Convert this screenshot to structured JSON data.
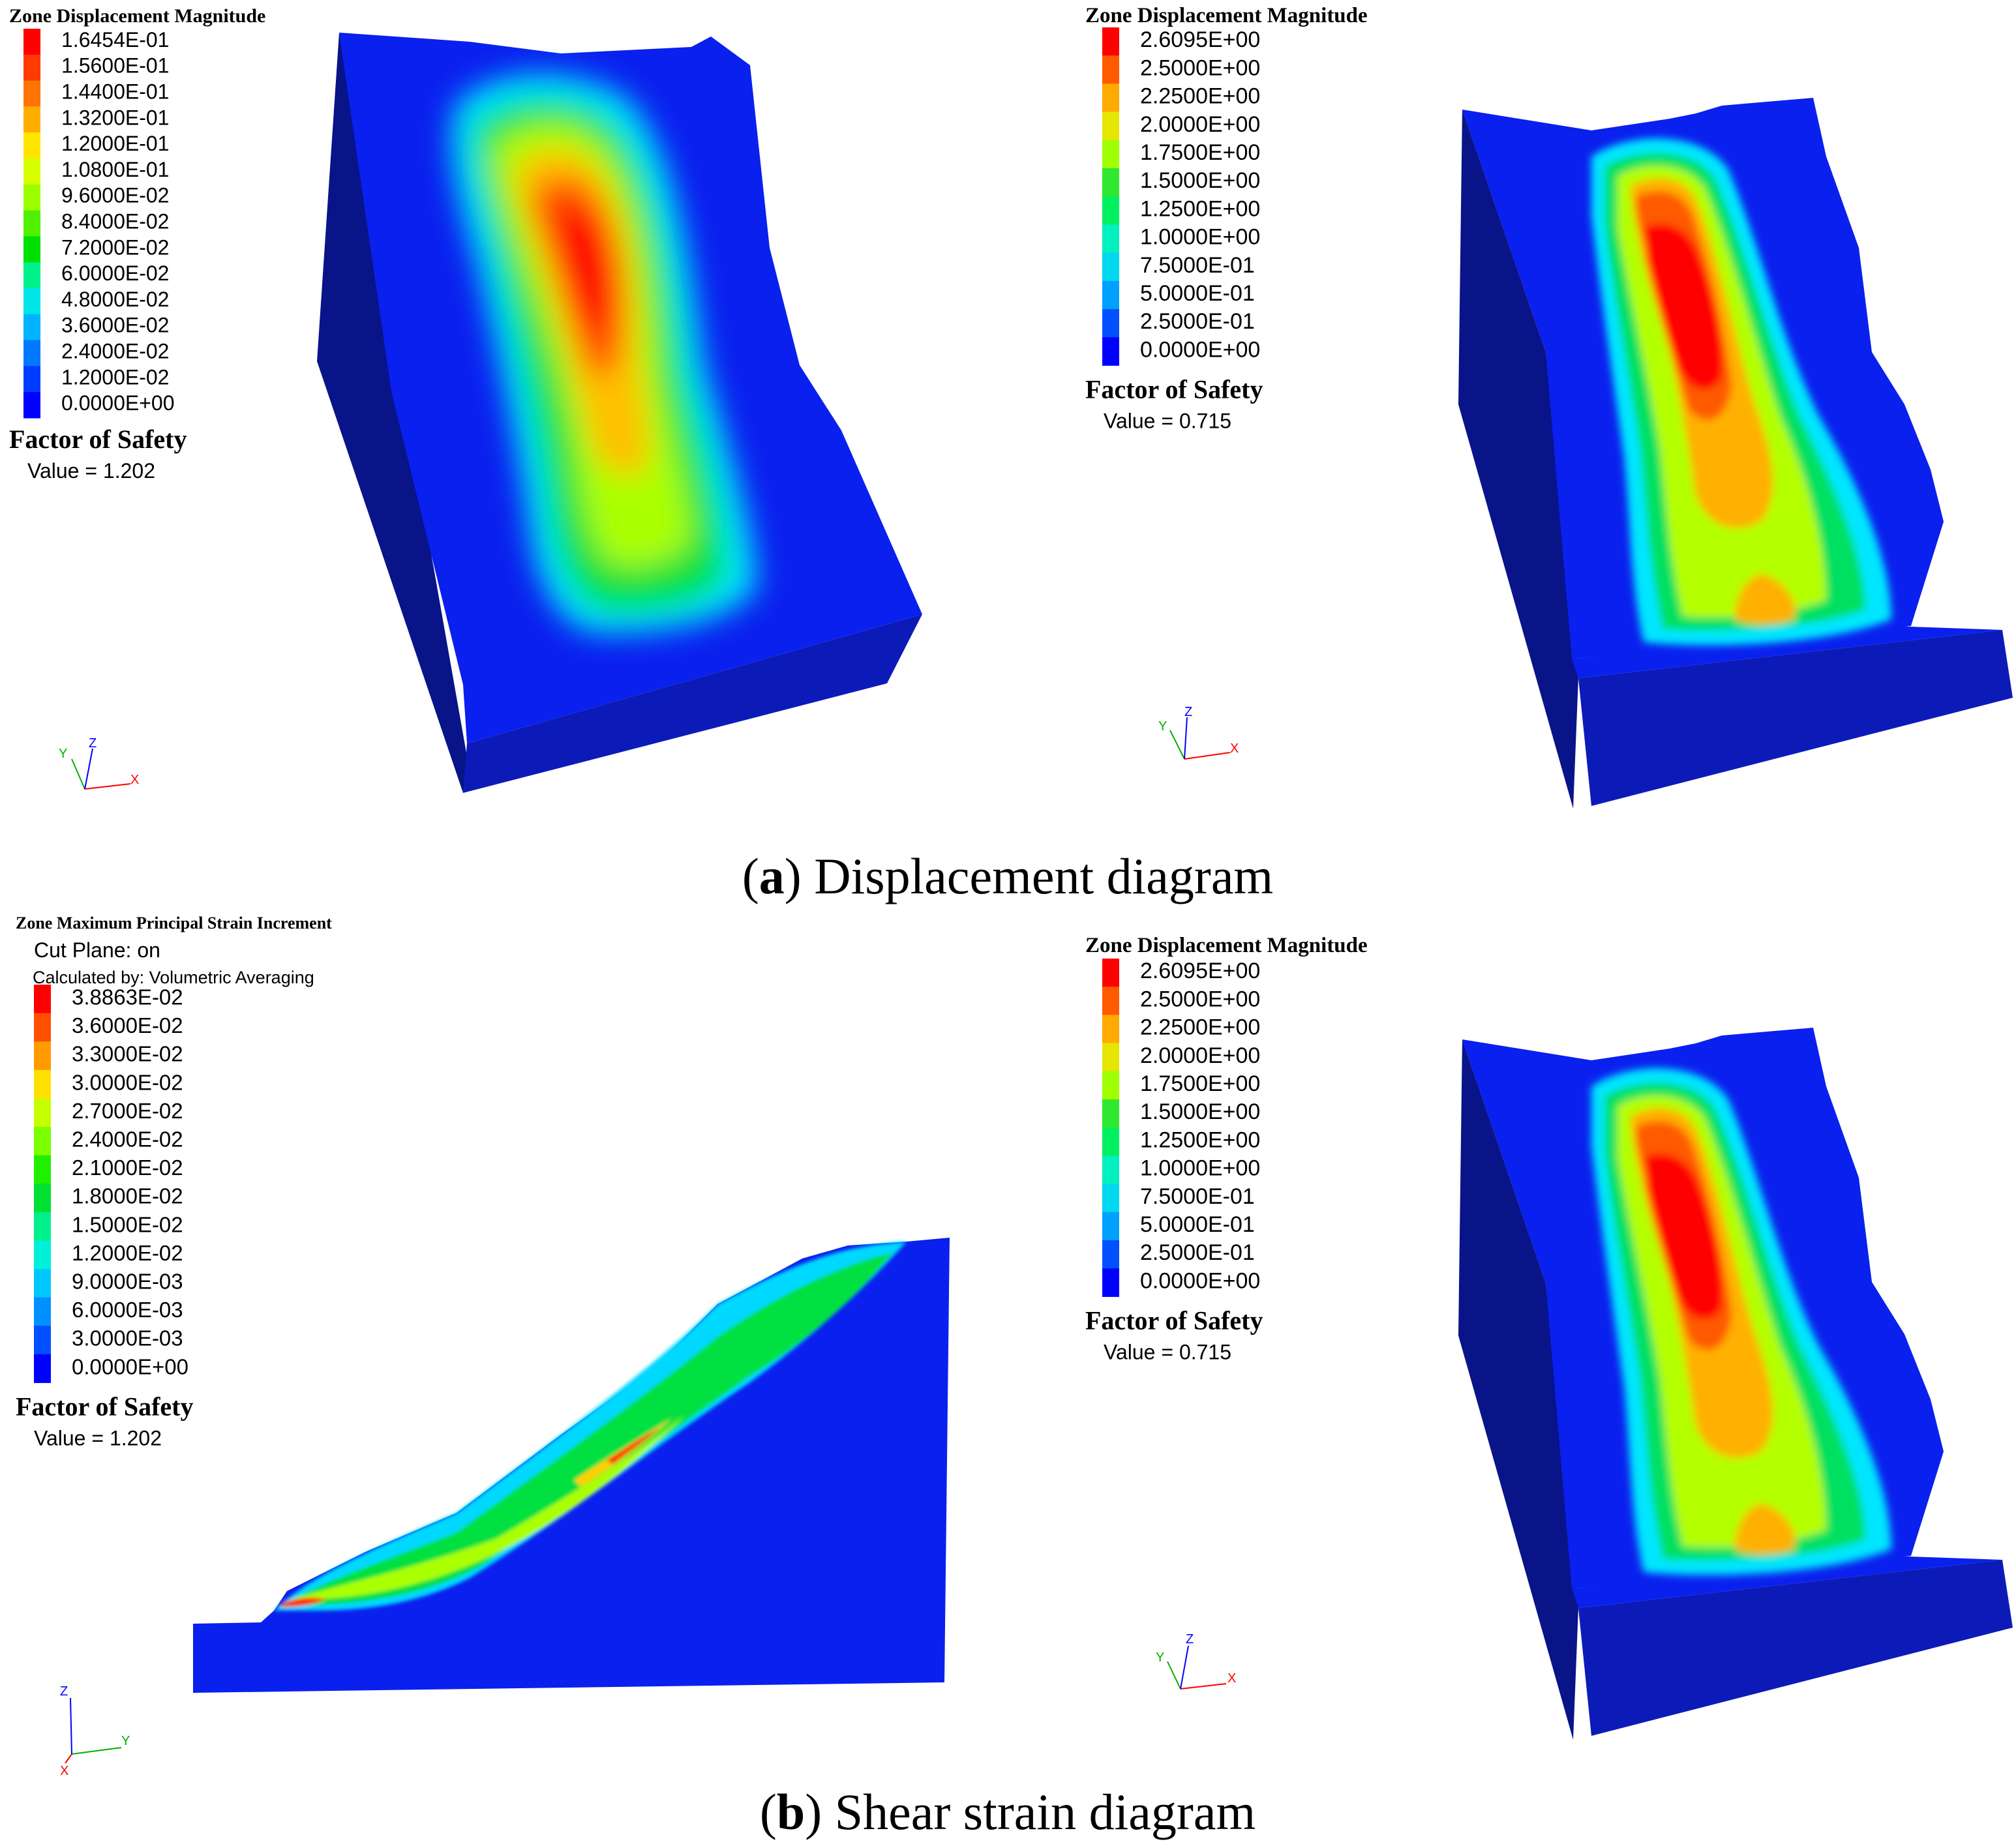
{
  "panels": [
    {
      "id": "a_left",
      "legend_title": "Zone Displacement Magnitude",
      "legend_sub": [],
      "legend_values": [
        "1.6454E-01",
        "1.5600E-01",
        "1.4400E-01",
        "1.3200E-01",
        "1.2000E-01",
        "1.0800E-01",
        "9.6000E-02",
        "8.4000E-02",
        "7.2000E-02",
        "6.0000E-02",
        "4.8000E-02",
        "3.6000E-02",
        "2.4000E-02",
        "1.2000E-02",
        "0.0000E+00"
      ],
      "legend_colors": [
        "#ff0000",
        "#ff3a00",
        "#ff7400",
        "#ffae00",
        "#ffe600",
        "#d8ff00",
        "#9cff00",
        "#50f000",
        "#00e000",
        "#00f08c",
        "#00e6e6",
        "#00b4ff",
        "#0078ff",
        "#003cff",
        "#0000ff"
      ],
      "fos_title": "Factor of Safety",
      "fos_value": "Value = 1.202"
    },
    {
      "id": "a_right",
      "legend_title": "Zone Displacement Magnitude",
      "legend_sub": [],
      "legend_values": [
        "2.6095E+00",
        "2.5000E+00",
        "2.2500E+00",
        "2.0000E+00",
        "1.7500E+00",
        "1.5000E+00",
        "1.2500E+00",
        "1.0000E+00",
        "7.5000E-01",
        "5.0000E-01",
        "2.5000E-01",
        "0.0000E+00"
      ],
      "legend_colors": [
        "#ff0000",
        "#ff5a00",
        "#ffaa00",
        "#e6e600",
        "#a0ff00",
        "#30e830",
        "#00f060",
        "#00f0c0",
        "#00d8f0",
        "#00a0ff",
        "#0050ff",
        "#0000ff"
      ],
      "fos_title": "Factor of Safety",
      "fos_value": "Value = 0.715"
    },
    {
      "id": "b_left",
      "legend_title": "Zone Maximum Principal Strain Increment",
      "legend_sub": [
        "Cut Plane: on",
        "Calculated by: Volumetric Averaging"
      ],
      "legend_values": [
        "3.8863E-02",
        "3.6000E-02",
        "3.3000E-02",
        "3.0000E-02",
        "2.7000E-02",
        "2.4000E-02",
        "2.1000E-02",
        "1.8000E-02",
        "1.5000E-02",
        "1.2000E-02",
        "9.0000E-03",
        "6.0000E-03",
        "3.0000E-03",
        "0.0000E+00"
      ],
      "legend_colors": [
        "#ff0000",
        "#ff5000",
        "#ff9a00",
        "#ffe000",
        "#c8ff00",
        "#7cff00",
        "#20f000",
        "#00e030",
        "#00f08c",
        "#00f0d8",
        "#00c8ff",
        "#0090ff",
        "#0050ff",
        "#0000ff"
      ],
      "fos_title": "Factor of Safety",
      "fos_value": "Value = 1.202"
    },
    {
      "id": "b_right",
      "legend_title": "Zone Displacement Magnitude",
      "legend_sub": [],
      "legend_values": [
        "2.6095E+00",
        "2.5000E+00",
        "2.2500E+00",
        "2.0000E+00",
        "1.7500E+00",
        "1.5000E+00",
        "1.2500E+00",
        "1.0000E+00",
        "7.5000E-01",
        "5.0000E-01",
        "2.5000E-01",
        "0.0000E+00"
      ],
      "legend_colors": [
        "#ff0000",
        "#ff5a00",
        "#ffaa00",
        "#e6e600",
        "#a0ff00",
        "#30e830",
        "#00f060",
        "#00f0c0",
        "#00d8f0",
        "#00a0ff",
        "#0050ff",
        "#0000ff"
      ],
      "fos_title": "Factor of Safety",
      "fos_value": "Value = 0.715"
    }
  ],
  "captions": {
    "a_letter": "a",
    "a_text": " Displacement diagram",
    "b_letter": "b",
    "b_text": " Shear strain diagram"
  },
  "axes_labels": {
    "x": "X",
    "y": "Y",
    "z": "Z"
  },
  "colors": {
    "model_blue": "#0a1ee6",
    "model_side": "#0c1aa0",
    "model_dark": "#08108a",
    "axis_x": "#ff0000",
    "axis_y": "#00b000",
    "axis_z": "#0000ff"
  }
}
